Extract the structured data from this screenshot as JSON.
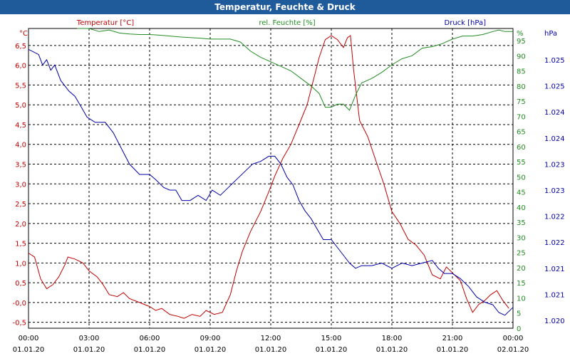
{
  "window": {
    "title": "Temperatur, Feuchte & Druck"
  },
  "chart_data": {
    "type": "line",
    "title": "Temperatur, Feuchte & Druck",
    "colors": {
      "temperature": "#c00000",
      "humidity": "#228b22",
      "pressure": "#0000aa"
    },
    "x_ticks": [
      {
        "time": "00:00",
        "date": "01.01.20",
        "hour": 0
      },
      {
        "time": "03:00",
        "date": "01.01.20",
        "hour": 3
      },
      {
        "time": "06:00",
        "date": "01.01.20",
        "hour": 6
      },
      {
        "time": "09:00",
        "date": "01.01.20",
        "hour": 9
      },
      {
        "time": "12:00",
        "date": "01.01.20",
        "hour": 12
      },
      {
        "time": "15:00",
        "date": "01.01.20",
        "hour": 15
      },
      {
        "time": "18:00",
        "date": "01.01.20",
        "hour": 18
      },
      {
        "time": "21:00",
        "date": "01.01.20",
        "hour": 21
      },
      {
        "time": "00:00",
        "date": "02.01.20",
        "hour": 24
      }
    ],
    "xlim": [
      0,
      24
    ],
    "axes": {
      "temperature": {
        "label": "Temperatur [°C]",
        "unit": "°C",
        "ylim": [
          -0.65,
          6.93
        ],
        "ticks": [
          "-0,5",
          "-0,0",
          "0,5",
          "1,0",
          "1,5",
          "2,0",
          "2,5",
          "3,0",
          "3,5",
          "4,0",
          "4,5",
          "5,0",
          "5,5",
          "6,0",
          "6,5"
        ],
        "tick_values": [
          -0.5,
          0,
          0.5,
          1,
          1.5,
          2,
          2.5,
          3,
          3.5,
          4,
          4.5,
          5,
          5.5,
          6,
          6.5
        ]
      },
      "humidity": {
        "label": "rel. Feuchte [%]",
        "unit": "%",
        "ylim": [
          0,
          99
        ],
        "ticks": [
          "0",
          "5",
          "10",
          "15",
          "20",
          "25",
          "30",
          "35",
          "40",
          "45",
          "50",
          "55",
          "60",
          "65",
          "70",
          "75",
          "80",
          "85",
          "90",
          "95"
        ],
        "tick_values": [
          0,
          5,
          10,
          15,
          20,
          25,
          30,
          35,
          40,
          45,
          50,
          55,
          60,
          65,
          70,
          75,
          80,
          85,
          90,
          95
        ]
      },
      "pressure": {
        "label": "Druck [hPa]",
        "unit": "hPa",
        "ylim": [
          1020.15,
          1025.9
        ],
        "ticks": [
          "1.020",
          "1.021",
          "1.021",
          "1.022",
          "1.022",
          "1.023",
          "1.023",
          "1.024",
          "1.024",
          "1.025",
          "1.025"
        ],
        "tick_values": [
          1020.3,
          1020.8,
          1021.3,
          1021.8,
          1022.3,
          1022.8,
          1023.3,
          1023.8,
          1024.3,
          1024.8,
          1025.3
        ]
      }
    },
    "series": [
      {
        "name": "Temperatur [°C]",
        "axis": "temperature",
        "points": [
          [
            0,
            1.25
          ],
          [
            0.3,
            1.15
          ],
          [
            0.6,
            0.6
          ],
          [
            0.9,
            0.35
          ],
          [
            1.2,
            0.45
          ],
          [
            1.5,
            0.65
          ],
          [
            1.8,
            0.95
          ],
          [
            1.95,
            1.15
          ],
          [
            2.3,
            1.1
          ],
          [
            2.7,
            1.0
          ],
          [
            3.0,
            0.8
          ],
          [
            3.4,
            0.65
          ],
          [
            3.7,
            0.45
          ],
          [
            4.0,
            0.2
          ],
          [
            4.4,
            0.15
          ],
          [
            4.7,
            0.25
          ],
          [
            5.0,
            0.1
          ],
          [
            5.5,
            0.0
          ],
          [
            6.0,
            -0.1
          ],
          [
            6.3,
            -0.2
          ],
          [
            6.6,
            -0.15
          ],
          [
            7.0,
            -0.3
          ],
          [
            7.4,
            -0.35
          ],
          [
            7.7,
            -0.4
          ],
          [
            8.1,
            -0.3
          ],
          [
            8.5,
            -0.35
          ],
          [
            8.8,
            -0.2
          ],
          [
            9.2,
            -0.3
          ],
          [
            9.6,
            -0.25
          ],
          [
            10.0,
            0.2
          ],
          [
            10.3,
            0.8
          ],
          [
            10.6,
            1.3
          ],
          [
            11.0,
            1.8
          ],
          [
            11.5,
            2.3
          ],
          [
            11.9,
            2.8
          ],
          [
            12.2,
            3.2
          ],
          [
            12.6,
            3.65
          ],
          [
            13.0,
            4.0
          ],
          [
            13.4,
            4.5
          ],
          [
            13.8,
            5.0
          ],
          [
            14.1,
            5.6
          ],
          [
            14.4,
            6.2
          ],
          [
            14.7,
            6.65
          ],
          [
            15.0,
            6.75
          ],
          [
            15.3,
            6.65
          ],
          [
            15.6,
            6.45
          ],
          [
            15.8,
            6.7
          ],
          [
            15.95,
            6.75
          ],
          [
            16.1,
            5.9
          ],
          [
            16.4,
            4.6
          ],
          [
            16.8,
            4.2
          ],
          [
            17.2,
            3.6
          ],
          [
            17.6,
            3.0
          ],
          [
            18.0,
            2.3
          ],
          [
            18.4,
            2.0
          ],
          [
            18.8,
            1.6
          ],
          [
            19.2,
            1.45
          ],
          [
            19.6,
            1.2
          ],
          [
            20.0,
            0.7
          ],
          [
            20.4,
            0.6
          ],
          [
            20.7,
            0.9
          ],
          [
            21.0,
            0.75
          ],
          [
            21.4,
            0.55
          ],
          [
            21.7,
            0.1
          ],
          [
            22.0,
            -0.25
          ],
          [
            22.3,
            -0.05
          ],
          [
            22.6,
            0.05
          ],
          [
            22.9,
            0.2
          ],
          [
            23.2,
            0.3
          ],
          [
            23.5,
            0.05
          ],
          [
            23.8,
            -0.15
          ]
        ]
      },
      {
        "name": "rel. Feuchte [%]",
        "axis": "humidity",
        "points": [
          [
            2.4,
            100
          ],
          [
            2.6,
            99.5
          ],
          [
            3.0,
            99
          ],
          [
            3.5,
            98
          ],
          [
            4.0,
            98.5
          ],
          [
            4.5,
            97.5
          ],
          [
            5.0,
            97.2
          ],
          [
            5.5,
            97
          ],
          [
            6.0,
            97
          ],
          [
            6.5,
            96.8
          ],
          [
            7.0,
            96.5
          ],
          [
            7.5,
            96.2
          ],
          [
            8.0,
            96
          ],
          [
            8.5,
            95.8
          ],
          [
            9.0,
            95.5
          ],
          [
            9.5,
            95.5
          ],
          [
            10.0,
            95.5
          ],
          [
            10.5,
            94.5
          ],
          [
            11.0,
            91.5
          ],
          [
            11.5,
            89.5
          ],
          [
            12.0,
            88
          ],
          [
            12.5,
            86.5
          ],
          [
            13.0,
            85
          ],
          [
            13.5,
            82.5
          ],
          [
            14.0,
            80
          ],
          [
            14.4,
            77.5
          ],
          [
            14.7,
            73
          ],
          [
            15.0,
            73
          ],
          [
            15.3,
            74
          ],
          [
            15.6,
            74
          ],
          [
            15.9,
            72
          ],
          [
            16.2,
            77
          ],
          [
            16.5,
            81
          ],
          [
            17.0,
            82.5
          ],
          [
            17.5,
            84.5
          ],
          [
            18.0,
            87
          ],
          [
            18.5,
            89
          ],
          [
            19.0,
            90
          ],
          [
            19.5,
            92.5
          ],
          [
            20.0,
            93
          ],
          [
            20.5,
            94
          ],
          [
            21.0,
            95.5
          ],
          [
            21.5,
            96.5
          ],
          [
            22.0,
            96.5
          ],
          [
            22.5,
            97
          ],
          [
            23.0,
            98
          ],
          [
            23.3,
            98.5
          ],
          [
            23.6,
            98
          ],
          [
            24.0,
            98
          ]
        ]
      },
      {
        "name": "Druck [hPa]",
        "axis": "pressure",
        "points": [
          [
            0,
            1025.5
          ],
          [
            0.5,
            1025.4
          ],
          [
            0.7,
            1025.2
          ],
          [
            0.9,
            1025.3
          ],
          [
            1.1,
            1025.1
          ],
          [
            1.3,
            1025.2
          ],
          [
            1.6,
            1024.9
          ],
          [
            2.0,
            1024.7
          ],
          [
            2.3,
            1024.6
          ],
          [
            2.6,
            1024.4
          ],
          [
            2.9,
            1024.2
          ],
          [
            3.3,
            1024.1
          ],
          [
            3.8,
            1024.1
          ],
          [
            4.2,
            1023.9
          ],
          [
            4.6,
            1023.6
          ],
          [
            5.0,
            1023.3
          ],
          [
            5.5,
            1023.1
          ],
          [
            6.0,
            1023.1
          ],
          [
            6.3,
            1023.0
          ],
          [
            6.7,
            1022.85
          ],
          [
            7.0,
            1022.8
          ],
          [
            7.3,
            1022.8
          ],
          [
            7.6,
            1022.6
          ],
          [
            8.0,
            1022.6
          ],
          [
            8.4,
            1022.7
          ],
          [
            8.8,
            1022.6
          ],
          [
            9.1,
            1022.8
          ],
          [
            9.5,
            1022.7
          ],
          [
            9.9,
            1022.85
          ],
          [
            10.3,
            1023.0
          ],
          [
            10.7,
            1023.15
          ],
          [
            11.1,
            1023.3
          ],
          [
            11.5,
            1023.35
          ],
          [
            11.9,
            1023.45
          ],
          [
            12.2,
            1023.45
          ],
          [
            12.5,
            1023.3
          ],
          [
            12.8,
            1023.05
          ],
          [
            13.1,
            1022.9
          ],
          [
            13.4,
            1022.6
          ],
          [
            13.7,
            1022.4
          ],
          [
            14.0,
            1022.25
          ],
          [
            14.3,
            1022.05
          ],
          [
            14.6,
            1021.85
          ],
          [
            15.0,
            1021.85
          ],
          [
            15.3,
            1021.7
          ],
          [
            15.6,
            1021.55
          ],
          [
            15.9,
            1021.4
          ],
          [
            16.2,
            1021.3
          ],
          [
            16.5,
            1021.35
          ],
          [
            17.0,
            1021.35
          ],
          [
            17.5,
            1021.4
          ],
          [
            18.0,
            1021.3
          ],
          [
            18.5,
            1021.4
          ],
          [
            19.0,
            1021.35
          ],
          [
            19.5,
            1021.4
          ],
          [
            20.0,
            1021.45
          ],
          [
            20.3,
            1021.3
          ],
          [
            20.6,
            1021.2
          ],
          [
            21.0,
            1021.2
          ],
          [
            21.4,
            1021.1
          ],
          [
            21.8,
            1020.95
          ],
          [
            22.2,
            1020.75
          ],
          [
            22.6,
            1020.65
          ],
          [
            23.0,
            1020.6
          ],
          [
            23.3,
            1020.45
          ],
          [
            23.6,
            1020.4
          ],
          [
            24.0,
            1020.55
          ]
        ]
      }
    ]
  }
}
